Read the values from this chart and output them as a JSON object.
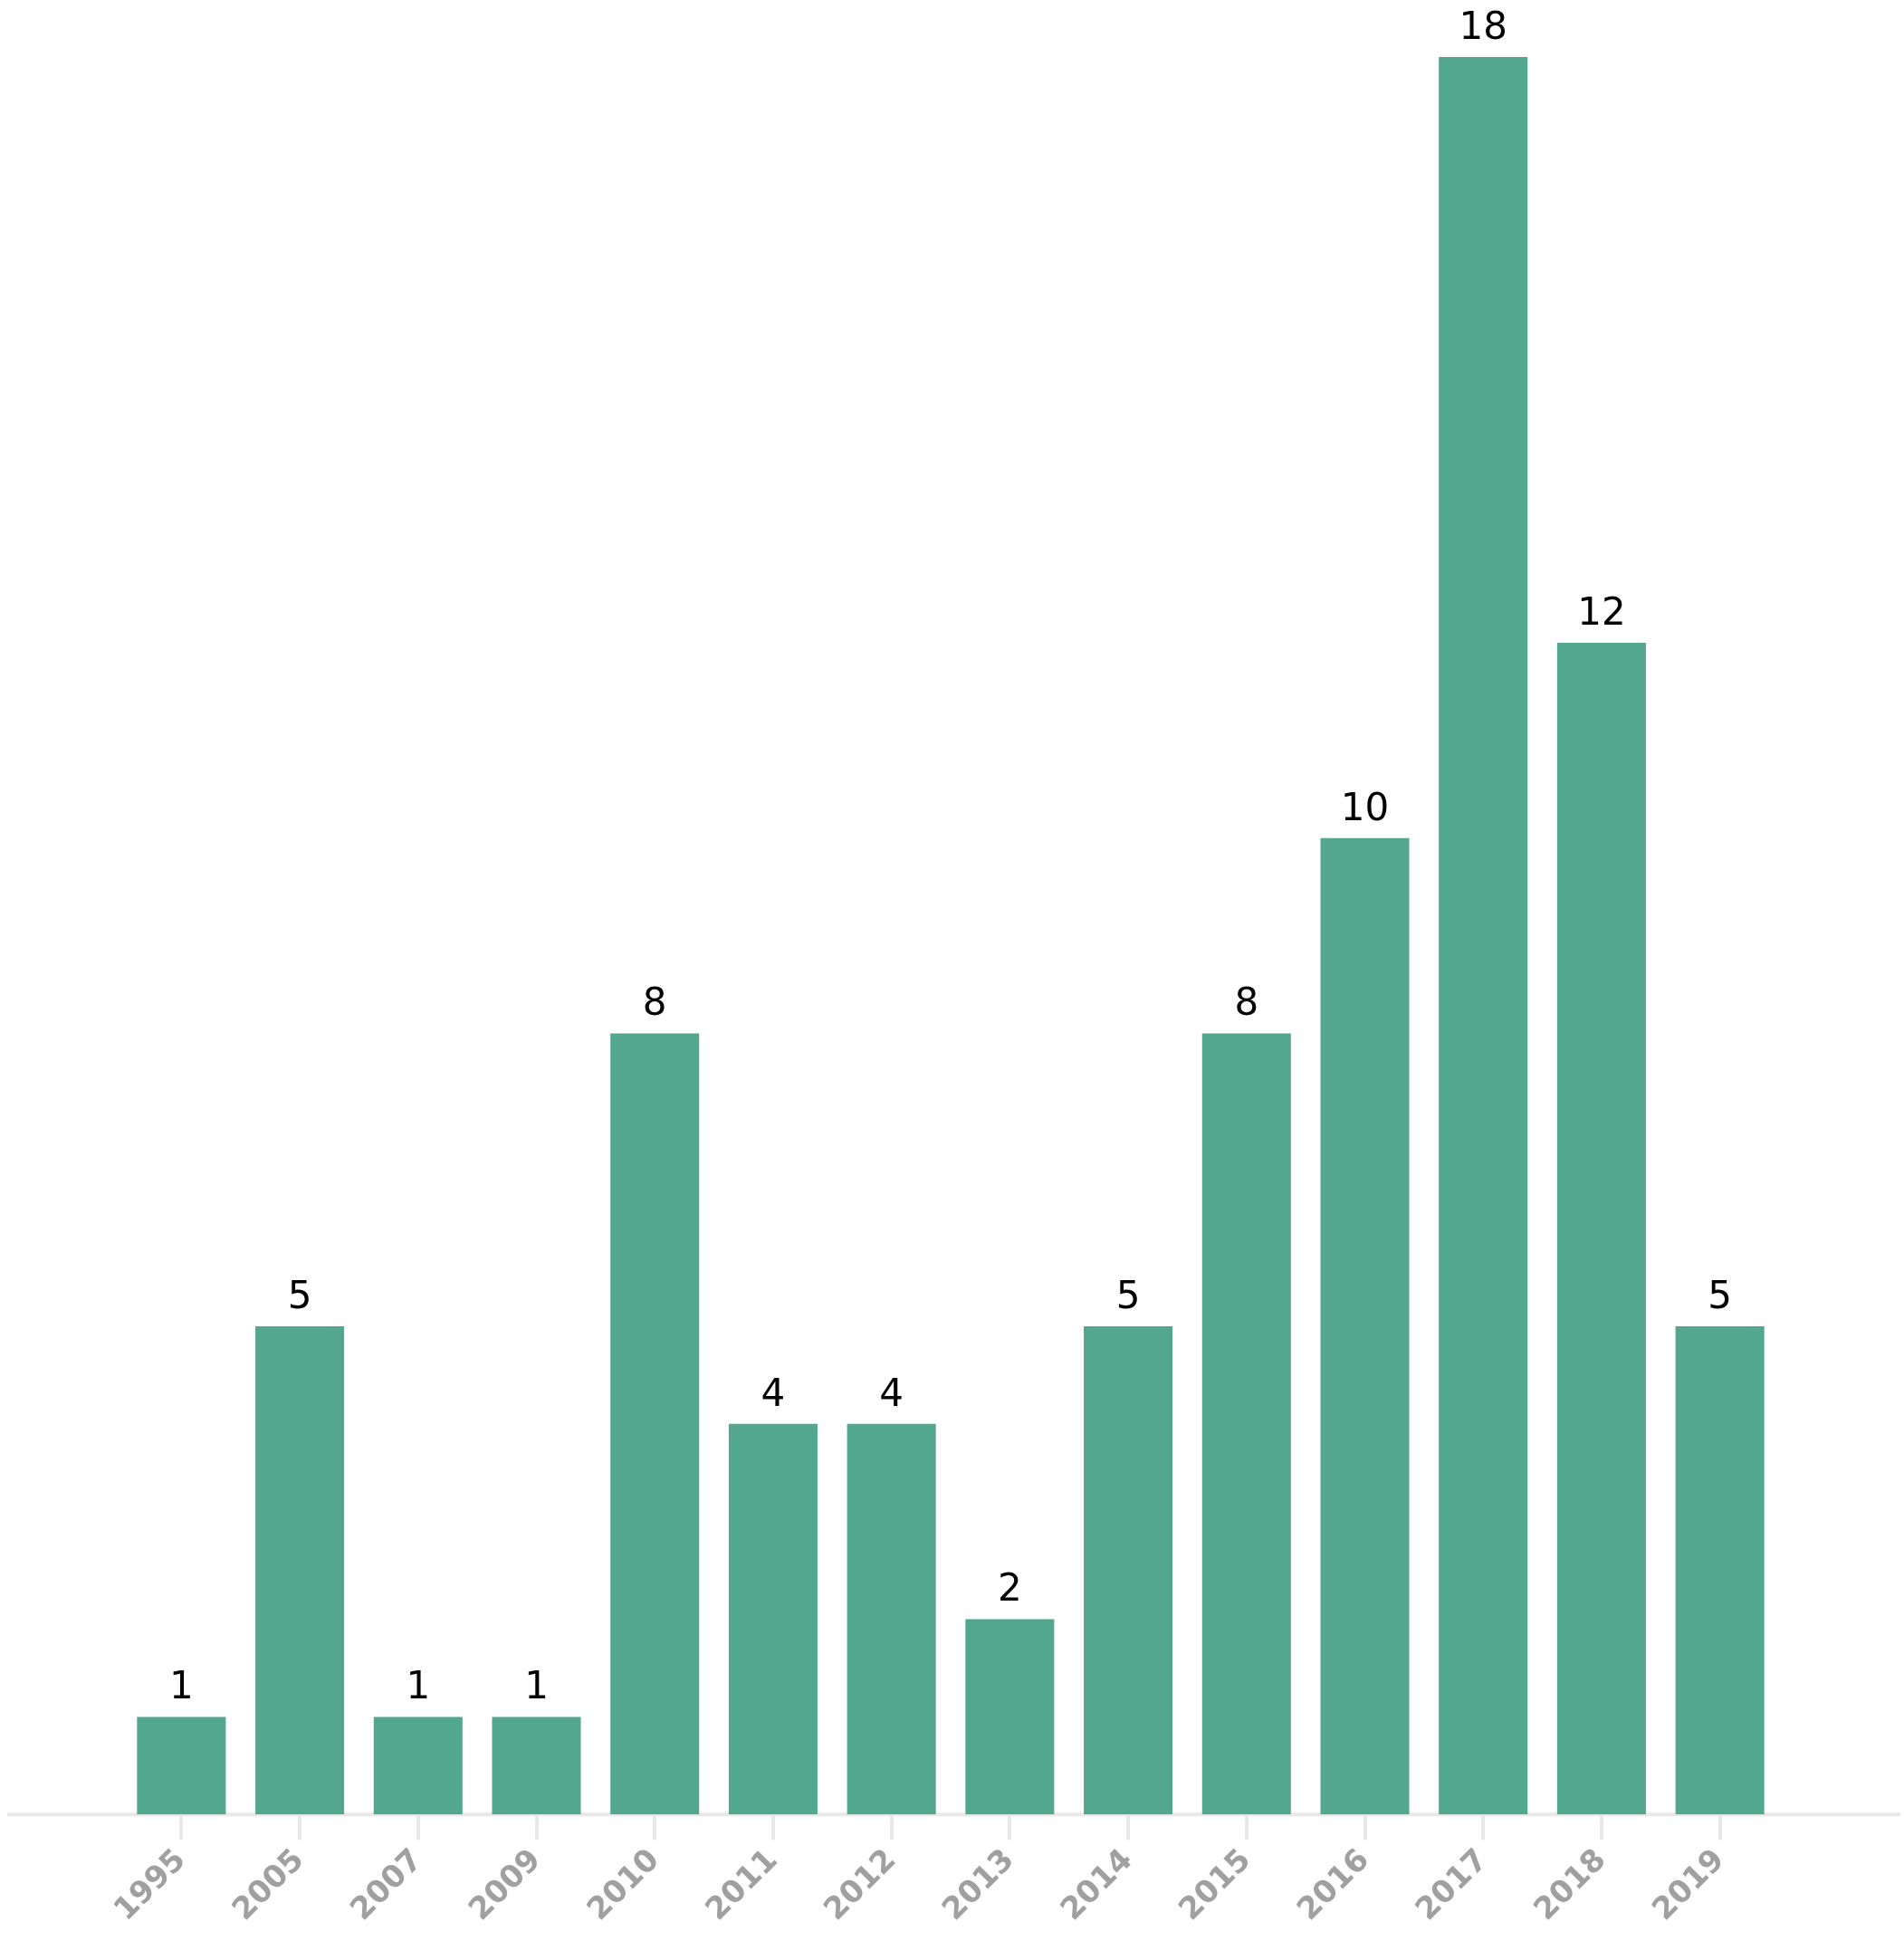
{
  "chart_data": {
    "type": "bar",
    "categories": [
      "1995",
      "2005",
      "2007",
      "2009",
      "2010",
      "2011",
      "2012",
      "2013",
      "2014",
      "2015",
      "2016",
      "2017",
      "2018",
      "2019"
    ],
    "values": [
      1,
      5,
      1,
      1,
      8,
      4,
      4,
      2,
      5,
      8,
      10,
      18,
      12,
      5
    ],
    "color": "#52a78e",
    "data_labels": true
  }
}
